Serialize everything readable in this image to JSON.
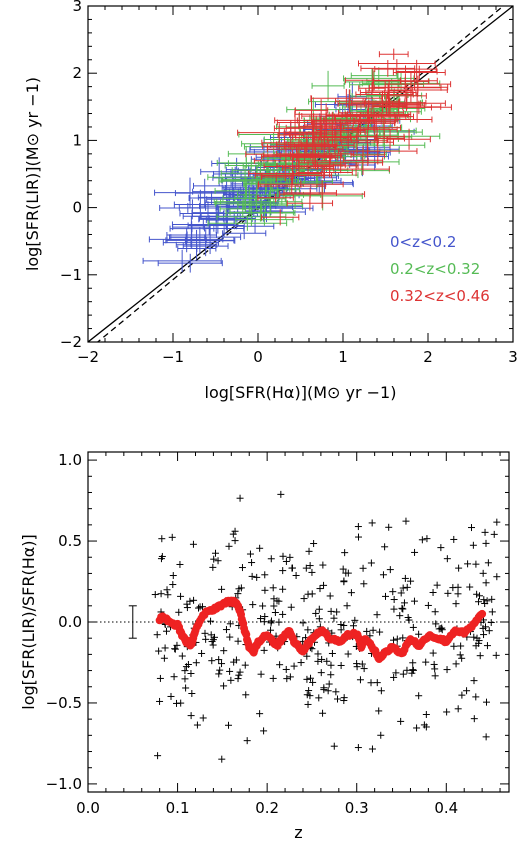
{
  "chart_data": [
    {
      "type": "scatter",
      "xlabel": "log[SFR(Hα)](M⊙ yr −1)",
      "ylabel": "log[SFR(LIR)](M⊙ yr −1)",
      "xlim": [
        -2,
        3
      ],
      "ylim": [
        -2,
        3
      ],
      "xticks": [
        "−2",
        "−1",
        "0",
        "1",
        "2",
        "3"
      ],
      "yticks": [
        "−2",
        "−1",
        "0",
        "1",
        "2",
        "3"
      ],
      "lines": [
        {
          "style": "solid",
          "x": [
            -2,
            3
          ],
          "y": [
            -2,
            3
          ]
        },
        {
          "style": "dashed",
          "x": [
            -2,
            3
          ],
          "y": [
            -2.12,
            3.12
          ]
        }
      ],
      "legend_position": "bottom-right",
      "series": [
        {
          "name": "0<z<0.2",
          "color": "#4455cc",
          "n": 150,
          "x_range": [
            -0.9,
            1.4
          ],
          "slope": 0.75,
          "intercept": 0.25,
          "scatter": 0.28
        },
        {
          "name": "0.2<z<0.32",
          "color": "#55bb55",
          "n": 130,
          "x_range": [
            -0.2,
            1.7
          ],
          "slope": 0.75,
          "intercept": 0.35,
          "scatter": 0.3
        },
        {
          "name": "0.32<z<0.46",
          "color": "#dd3333",
          "n": 110,
          "x_range": [
            0.2,
            1.9
          ],
          "slope": 0.78,
          "intercept": 0.38,
          "scatter": 0.3
        }
      ]
    },
    {
      "type": "scatter",
      "xlabel": "z",
      "ylabel": "log[SFR(LIR)/SFR(Hα)]",
      "xlim": [
        0,
        0.47
      ],
      "ylim": [
        -1.05,
        1.05
      ],
      "xticks": [
        "0.0",
        "0.1",
        "0.2",
        "0.3",
        "0.4"
      ],
      "yticks": [
        "−1.0",
        "−0.5",
        "0.0",
        "0.5",
        "1.0"
      ],
      "reference_line": {
        "y": 0,
        "style": "dotted"
      },
      "errorbar_sample": {
        "x": 0.05,
        "y": 0,
        "err": 0.1
      },
      "points": {
        "marker": "+",
        "color": "#000000",
        "n": 400,
        "x_range": [
          0.075,
          0.46
        ],
        "scatter": 0.3
      },
      "running_median": {
        "color": "#ee2222",
        "x": [
          0.08,
          0.085,
          0.09,
          0.1,
          0.105,
          0.11,
          0.115,
          0.12,
          0.13,
          0.14,
          0.15,
          0.16,
          0.165,
          0.17,
          0.175,
          0.18,
          0.185,
          0.19,
          0.2,
          0.21,
          0.22,
          0.225,
          0.23,
          0.24,
          0.25,
          0.26,
          0.27,
          0.28,
          0.29,
          0.3,
          0.305,
          0.31,
          0.32,
          0.325,
          0.33,
          0.34,
          0.35,
          0.36,
          0.37,
          0.38,
          0.39,
          0.4,
          0.41,
          0.42,
          0.43,
          0.44
        ],
        "y": [
          0.02,
          0.03,
          0.0,
          -0.02,
          -0.08,
          -0.12,
          -0.14,
          -0.05,
          0.05,
          0.08,
          0.11,
          0.13,
          0.12,
          0.06,
          -0.05,
          -0.15,
          -0.18,
          -0.12,
          -0.08,
          -0.15,
          -0.08,
          -0.05,
          -0.12,
          -0.18,
          -0.1,
          -0.05,
          -0.1,
          -0.12,
          -0.08,
          -0.07,
          -0.15,
          -0.1,
          -0.18,
          -0.22,
          -0.2,
          -0.15,
          -0.2,
          -0.1,
          -0.15,
          -0.08,
          -0.1,
          -0.12,
          -0.05,
          -0.07,
          -0.02,
          0.05
        ]
      }
    }
  ]
}
